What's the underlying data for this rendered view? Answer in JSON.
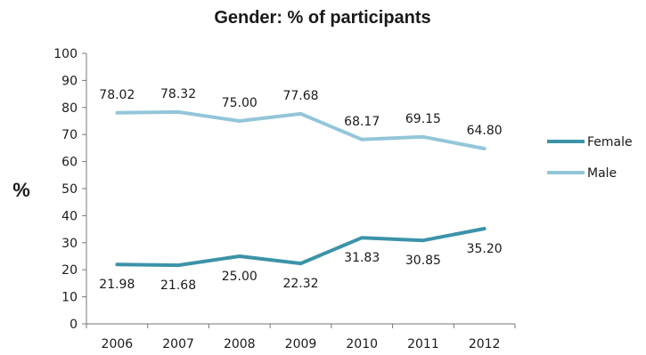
{
  "chart_data": {
    "type": "line",
    "title": "Gender: % of participants",
    "xlabel": "",
    "ylabel": "%",
    "categories": [
      "2006",
      "2007",
      "2008",
      "2009",
      "2010",
      "2011",
      "2012"
    ],
    "ylim": [
      0,
      100
    ],
    "yticks": [
      "0",
      "10",
      "20",
      "30",
      "40",
      "50",
      "60",
      "70",
      "80",
      "90",
      "100"
    ],
    "grid": false,
    "legend_position": "right",
    "series": [
      {
        "name": "Female",
        "color": "#3b93a8",
        "values": [
          21.98,
          21.68,
          25.0,
          22.32,
          31.83,
          30.85,
          35.2
        ],
        "labels": [
          "21.98",
          "21.68",
          "25.00",
          "22.32",
          "31.83",
          "30.85",
          "35.20"
        ]
      },
      {
        "name": "Male",
        "color": "#93c6d8",
        "values": [
          78.02,
          78.32,
          75.0,
          77.68,
          68.17,
          69.15,
          64.8
        ],
        "labels": [
          "78.02",
          "78.32",
          "75.00",
          "77.68",
          "68.17",
          "69.15",
          "64.80"
        ]
      }
    ]
  }
}
